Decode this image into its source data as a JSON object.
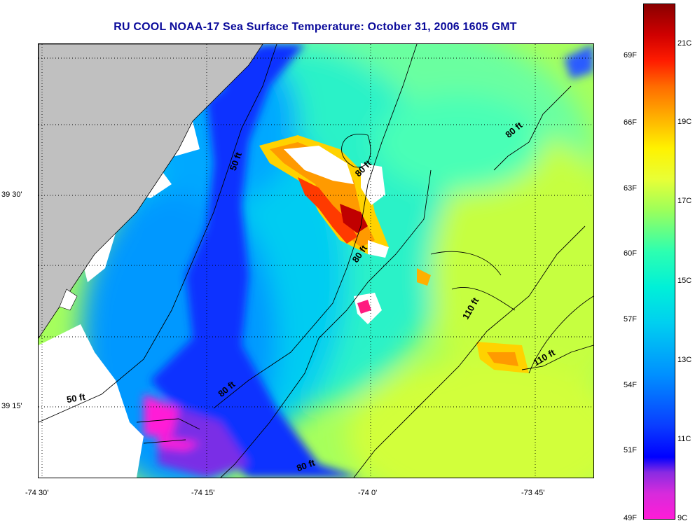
{
  "title": "RU COOL  NOAA-17  Sea Surface Temperature:  October 31, 2006 1605 GMT",
  "map": {
    "x_ticks": [
      "-74 30'",
      "-74 15'",
      "-74 0'",
      "-73 45'"
    ],
    "y_ticks": [
      "39 30'",
      "39 15'"
    ],
    "contour_labels": [
      "50 ft",
      "80 ft",
      "80 ft",
      "80 ft",
      "110 ft",
      "110 ft",
      "80 ft",
      "80 ft",
      "50 ft"
    ],
    "colors": {
      "land": "#c0c0c0",
      "title": "#0a0a9a"
    }
  },
  "colorbar": {
    "fahrenheit": [
      "69F",
      "66F",
      "63F",
      "60F",
      "57F",
      "54F",
      "51F",
      "49F"
    ],
    "celsius": [
      "21C",
      "19C",
      "17C",
      "15C",
      "13C",
      "11C",
      "9C"
    ]
  }
}
